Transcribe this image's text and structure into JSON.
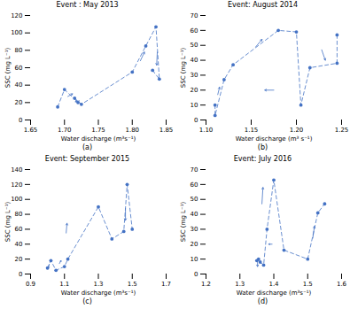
{
  "chart_data": [
    {
      "type": "line",
      "title": "Event : May 2013",
      "label": "(a)",
      "xlabel": "Water discharge (m³s⁻¹)",
      "ylabel": "SSC (mg L⁻¹)",
      "xlim": [
        1.65,
        1.85
      ],
      "ylim": [
        0,
        120
      ],
      "xticks": [
        1.65,
        {
          "value": 1.7,
          "label": "1.70"
        },
        1.75,
        {
          "value": 1.8,
          "label": "1.80"
        },
        1.85
      ],
      "yticks": [
        0,
        20,
        40,
        60,
        80,
        100,
        120
      ],
      "x": [
        1.69,
        1.7,
        1.72,
        1.715,
        1.725,
        1.8,
        1.82,
        1.835,
        1.84,
        1.83
      ],
      "values": [
        15,
        35,
        20,
        25,
        18,
        55,
        85,
        107,
        47,
        57
      ],
      "marker": "circle",
      "line_style": "dashed",
      "color": "#4472C4",
      "arrows": [
        {
          "x1": 1.705,
          "y1": 27,
          "x2": 1.712,
          "y2": 30
        },
        {
          "x1": 1.722,
          "y1": 22,
          "x2": 1.716,
          "y2": 21
        },
        {
          "x1": 1.812,
          "y1": 68,
          "x2": 1.818,
          "y2": 78
        },
        {
          "x1": 1.837,
          "y1": 78,
          "x2": 1.836,
          "y2": 63
        }
      ]
    },
    {
      "type": "line",
      "title": "Event: August 2014",
      "label": "(b)",
      "xlabel": "Water discharge (m³ s⁻¹)",
      "ylabel": "SSC (mg L⁻¹)",
      "xlim": [
        1.1,
        1.25
      ],
      "ylim": [
        0,
        70
      ],
      "xticks": [
        {
          "value": 1.1,
          "label": "1.10"
        },
        1.15,
        {
          "value": 1.2,
          "label": "1.20"
        },
        1.25
      ],
      "yticks": [
        0,
        10,
        20,
        30,
        40,
        50,
        60,
        70
      ],
      "x": [
        1.11,
        1.11,
        1.12,
        1.13,
        1.18,
        1.2,
        1.205,
        1.215,
        1.245,
        1.245
      ],
      "values": [
        10,
        3,
        27,
        37,
        60,
        59,
        10,
        35,
        38,
        57
      ],
      "marker": "circle",
      "line_style": "dashed",
      "color": "#4472C4",
      "arrows": [
        {
          "x1": 1.113,
          "y1": 17,
          "x2": 1.115,
          "y2": 22
        },
        {
          "x1": 1.155,
          "y1": 49,
          "x2": 1.162,
          "y2": 54
        },
        {
          "x1": 1.175,
          "y1": 20,
          "x2": 1.165,
          "y2": 20
        },
        {
          "x1": 1.228,
          "y1": 47,
          "x2": 1.232,
          "y2": 40
        }
      ]
    },
    {
      "type": "line",
      "title": "Event: September 2015",
      "label": "(c)",
      "xlabel": "Water discharge (m³s⁻¹)",
      "ylabel": "SSC (mg L⁻¹)",
      "xlim": [
        0.9,
        1.7
      ],
      "ylim": [
        0,
        140
      ],
      "xticks": [
        0.9,
        1.1,
        1.3,
        1.5,
        1.7
      ],
      "yticks": [
        0,
        20,
        40,
        60,
        80,
        100,
        120,
        140
      ],
      "x": [
        1.0,
        1.02,
        1.05,
        1.1,
        1.12,
        1.3,
        1.38,
        1.45,
        1.47,
        1.5
      ],
      "values": [
        8,
        18,
        5,
        10,
        20,
        90,
        47,
        57,
        120,
        60
      ],
      "marker": "circle",
      "line_style": "dashed",
      "color": "#4472C4",
      "arrows": [
        {
          "x1": 1.01,
          "y1": 13,
          "x2": 1.005,
          "y2": 8
        },
        {
          "x1": 1.07,
          "y1": 14,
          "x2": 1.08,
          "y2": 18
        },
        {
          "x1": 1.11,
          "y1": 55,
          "x2": 1.115,
          "y2": 68
        },
        {
          "x1": 1.46,
          "y1": 88,
          "x2": 1.46,
          "y2": 72
        }
      ]
    },
    {
      "type": "line",
      "title": "Event: July 2016",
      "label": "(d)",
      "xlabel": "Water discharge (m³s⁻¹)",
      "ylabel": "SSC (mg L⁻¹)",
      "xlim": [
        1.2,
        1.6
      ],
      "ylim": [
        0,
        70
      ],
      "xticks": [
        1.2,
        1.3,
        1.4,
        1.5,
        1.6
      ],
      "yticks": [
        0,
        10,
        20,
        30,
        40,
        50,
        60,
        70
      ],
      "x": [
        1.35,
        1.355,
        1.36,
        1.37,
        1.38,
        1.4,
        1.43,
        1.5,
        1.53,
        1.55
      ],
      "values": [
        9,
        10,
        8,
        6,
        30,
        63,
        16,
        10,
        41,
        47
      ],
      "marker": "circle",
      "line_style": "dashed",
      "color": "#4472C4",
      "arrows": [
        {
          "x1": 1.352,
          "y1": 9.5,
          "x2": 1.352,
          "y2": 5
        },
        {
          "x1": 1.365,
          "y1": 47,
          "x2": 1.368,
          "y2": 58
        },
        {
          "x1": 1.395,
          "y1": 20,
          "x2": 1.385,
          "y2": 20
        },
        {
          "x1": 1.515,
          "y1": 24,
          "x2": 1.52,
          "y2": 32
        }
      ]
    }
  ]
}
